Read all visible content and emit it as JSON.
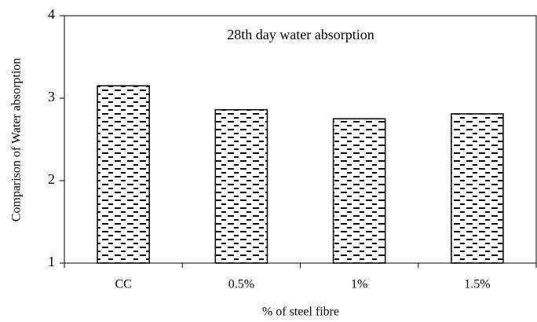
{
  "chart_data": {
    "type": "bar",
    "title": "28th day water absorption",
    "x_label": "% of steel fibre",
    "y_label": "Comparison of Water absorption",
    "categories": [
      "CC",
      "0.5%",
      "1%",
      "1.5%"
    ],
    "values": [
      3.15,
      2.86,
      2.75,
      2.81
    ],
    "color": "#000000",
    "ylim": [
      1,
      4
    ],
    "yticks": [
      1,
      2,
      3,
      4
    ],
    "grid": false
  }
}
